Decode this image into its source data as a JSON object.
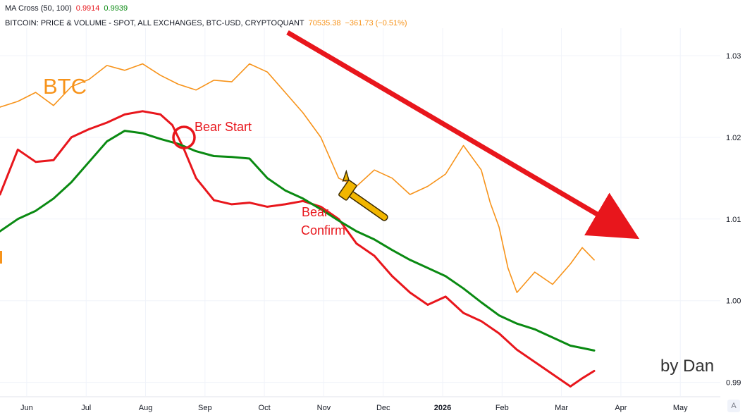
{
  "legend": {
    "ma_cross": {
      "label": "MA Cross (50, 100)",
      "value_fast": "0.9914",
      "value_slow": "0.9939"
    },
    "series_info": {
      "label": "BITCOIN: PRICE & VOLUME - SPOT, ALL EXCHANGES, BTC-USD, CRYPTOQUANT",
      "price": "70535.38",
      "change": "−361.73 (−0.51%)"
    }
  },
  "colors": {
    "btc": "#f7931a",
    "ma_fast": "#e8161c",
    "ma_slow": "#0a8a12",
    "arrow": "#e8161c",
    "axis_text": "#131722",
    "grid": "#f0f3fa",
    "hammer": "#f2b600"
  },
  "annotations": {
    "btc_label": "BTC",
    "bear_start": "Bear Start",
    "bear_confirm_line1": "Bear",
    "bear_confirm_line2": "Confirm",
    "author": "by Dan"
  },
  "axis_badge": "A",
  "chart_data": {
    "type": "line",
    "x_axis": {
      "ticks": [
        {
          "label": "Jun",
          "t": 0.45
        },
        {
          "label": "Jul",
          "t": 1.45
        },
        {
          "label": "Aug",
          "t": 2.45
        },
        {
          "label": "Sep",
          "t": 3.45
        },
        {
          "label": "Oct",
          "t": 4.45
        },
        {
          "label": "Nov",
          "t": 5.45
        },
        {
          "label": "Dec",
          "t": 6.45
        },
        {
          "label": "2026",
          "t": 7.45,
          "bold": true
        },
        {
          "label": "Feb",
          "t": 8.45
        },
        {
          "label": "Mar",
          "t": 9.45
        },
        {
          "label": "Apr",
          "t": 10.45
        },
        {
          "label": "May",
          "t": 11.45
        }
      ],
      "range": [
        0,
        12.1
      ]
    },
    "y_axis": {
      "ticks": [
        "0.99",
        "1.00",
        "1.01",
        "1.02",
        "1.03"
      ],
      "tick_values": [
        0.99,
        1.0,
        1.01,
        1.02,
        1.03
      ],
      "range": [
        0.9885,
        1.0325
      ]
    },
    "grid": true,
    "series": [
      {
        "key": "btc",
        "x": [
          0.0,
          0.3,
          0.6,
          0.9,
          1.2,
          1.5,
          1.8,
          2.1,
          2.4,
          2.7,
          3.0,
          3.3,
          3.6,
          3.9,
          4.2,
          4.5,
          4.8,
          5.1,
          5.4,
          5.7,
          6.0,
          6.3,
          6.6,
          6.9,
          7.2,
          7.5,
          7.8,
          8.1,
          8.25,
          8.4,
          8.55,
          8.7,
          9.0,
          9.3,
          9.6,
          9.8,
          10.0
        ],
        "y": [
          1.0237,
          1.0244,
          1.0255,
          1.0239,
          1.0262,
          1.0271,
          1.0288,
          1.0282,
          1.029,
          1.0276,
          1.0265,
          1.0258,
          1.027,
          1.0268,
          1.029,
          1.028,
          1.0255,
          1.023,
          1.02,
          1.015,
          1.014,
          1.016,
          1.015,
          1.013,
          1.014,
          1.0155,
          1.019,
          1.016,
          1.012,
          1.009,
          1.004,
          1.001,
          1.0035,
          1.002,
          1.0045,
          1.0065,
          1.005
        ]
      },
      {
        "key": "ma_fast",
        "x": [
          0.0,
          0.3,
          0.6,
          0.9,
          1.2,
          1.5,
          1.8,
          2.1,
          2.4,
          2.7,
          2.9,
          3.1,
          3.3,
          3.6,
          3.9,
          4.2,
          4.5,
          4.8,
          5.1,
          5.4,
          5.7,
          6.0,
          6.3,
          6.6,
          6.9,
          7.2,
          7.5,
          7.8,
          8.1,
          8.4,
          8.7,
          9.0,
          9.3,
          9.6,
          9.8,
          10.0
        ],
        "y": [
          1.013,
          1.0185,
          1.017,
          1.0172,
          1.02,
          1.021,
          1.0218,
          1.0228,
          1.0232,
          1.0228,
          1.0215,
          1.0185,
          1.015,
          1.0123,
          1.0118,
          1.012,
          1.0115,
          1.0118,
          1.0122,
          1.0115,
          1.01,
          1.007,
          1.0055,
          1.003,
          1.001,
          0.9995,
          1.0005,
          0.9985,
          0.9975,
          0.996,
          0.994,
          0.9925,
          0.991,
          0.9895,
          0.9905,
          0.9914
        ]
      },
      {
        "key": "ma_slow",
        "x": [
          0.0,
          0.3,
          0.6,
          0.9,
          1.2,
          1.5,
          1.8,
          2.1,
          2.4,
          2.7,
          3.0,
          3.3,
          3.6,
          3.9,
          4.2,
          4.5,
          4.8,
          5.1,
          5.4,
          5.7,
          6.0,
          6.3,
          6.6,
          6.9,
          7.2,
          7.5,
          7.8,
          8.1,
          8.4,
          8.7,
          9.0,
          9.3,
          9.6,
          9.8,
          10.0
        ],
        "y": [
          1.0085,
          1.01,
          1.011,
          1.0125,
          1.0145,
          1.017,
          1.0195,
          1.0208,
          1.0205,
          1.0198,
          1.0192,
          1.0183,
          1.0177,
          1.0176,
          1.0174,
          1.015,
          1.0135,
          1.0125,
          1.0112,
          1.0098,
          1.0085,
          1.0075,
          1.0062,
          1.005,
          1.004,
          1.003,
          1.0015,
          0.9998,
          0.9982,
          0.9972,
          0.9965,
          0.9955,
          0.9945,
          0.9942,
          0.9939
        ]
      }
    ]
  }
}
